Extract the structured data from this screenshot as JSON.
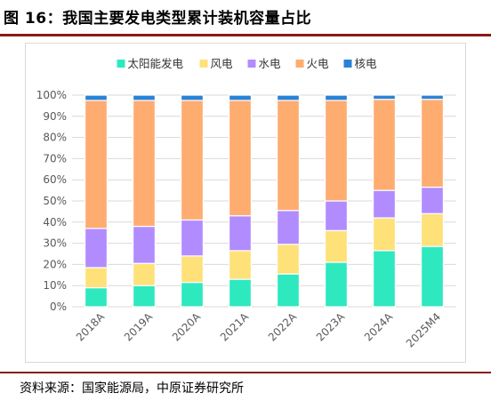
{
  "figure_title": "图 16：我国主要发电类型累计装机容量占比",
  "source_note": "资料来源：国家能源局，中原证券研究所",
  "chart_data": {
    "type": "bar",
    "stacked": true,
    "title": "",
    "xlabel": "",
    "ylabel": "",
    "ylim": [
      0,
      100
    ],
    "y_ticks": [
      "0%",
      "10%",
      "20%",
      "30%",
      "40%",
      "50%",
      "60%",
      "70%",
      "80%",
      "90%",
      "100%"
    ],
    "categories": [
      "2018A",
      "2019A",
      "2020A",
      "2021A",
      "2022A",
      "2023A",
      "2024A",
      "2025M4"
    ],
    "legend_position": "top",
    "grid": true,
    "series": [
      {
        "name": "太阳能发电",
        "color": "#2ee8c0",
        "values": [
          9,
          10,
          11.5,
          13,
          15.5,
          21,
          26.5,
          28.5
        ]
      },
      {
        "name": "风电",
        "color": "#ffe17a",
        "values": [
          9.5,
          10.5,
          12.5,
          13.5,
          14,
          15,
          15.5,
          15.5
        ]
      },
      {
        "name": "水电",
        "color": "#b18cff",
        "values": [
          18.5,
          17.5,
          17,
          16.5,
          16,
          14,
          13,
          12.5
        ]
      },
      {
        "name": "火电",
        "color": "#ffac70",
        "values": [
          60.5,
          59.5,
          56.5,
          54.5,
          52,
          47.5,
          43,
          41.5
        ]
      },
      {
        "name": "核电",
        "color": "#2a82d6",
        "values": [
          2.5,
          2.5,
          2.5,
          2.5,
          2.5,
          2.5,
          2,
          2
        ]
      }
    ]
  }
}
